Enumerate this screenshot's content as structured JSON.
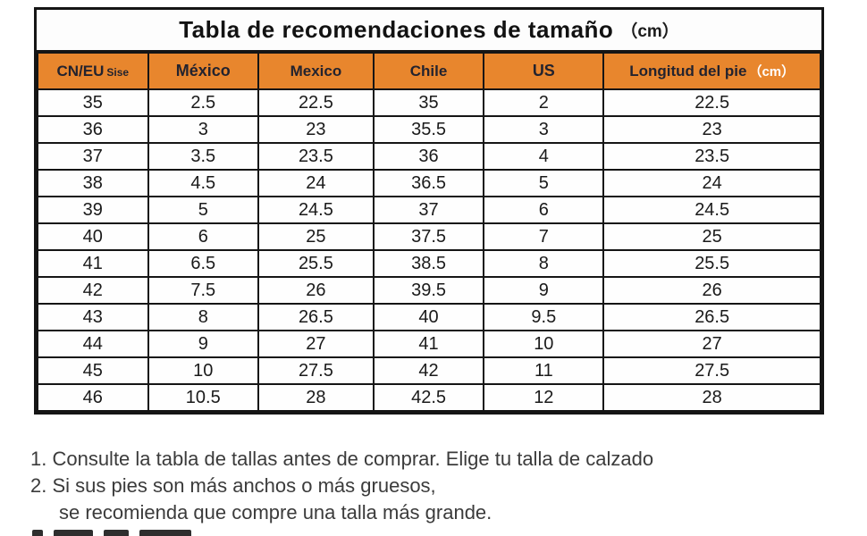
{
  "title": {
    "main": "Tabla de recomendaciones de tamaño",
    "unit": "（cm）"
  },
  "table": {
    "headers": [
      {
        "label": "CN/EU",
        "sub": "Sise"
      },
      {
        "label": "México"
      },
      {
        "label": "Mexico"
      },
      {
        "label": "Chile"
      },
      {
        "label": "US"
      },
      {
        "label": "Longitud del pie",
        "unit": "（cm）"
      }
    ],
    "rows": [
      [
        "35",
        "2.5",
        "22.5",
        "35",
        "2",
        "22.5"
      ],
      [
        "36",
        "3",
        "23",
        "35.5",
        "3",
        "23"
      ],
      [
        "37",
        "3.5",
        "23.5",
        "36",
        "4",
        "23.5"
      ],
      [
        "38",
        "4.5",
        "24",
        "36.5",
        "5",
        "24"
      ],
      [
        "39",
        "5",
        "24.5",
        "37",
        "6",
        "24.5"
      ],
      [
        "40",
        "6",
        "25",
        "37.5",
        "7",
        "25"
      ],
      [
        "41",
        "6.5",
        "25.5",
        "38.5",
        "8",
        "25.5"
      ],
      [
        "42",
        "7.5",
        "26",
        "39.5",
        "9",
        "26"
      ],
      [
        "43",
        "8",
        "26.5",
        "40",
        "9.5",
        "26.5"
      ],
      [
        "44",
        "9",
        "27",
        "41",
        "10",
        "27"
      ],
      [
        "45",
        "10",
        "27.5",
        "42",
        "11",
        "27.5"
      ],
      [
        "46",
        "10.5",
        "28",
        "42.5",
        "12",
        "28"
      ]
    ]
  },
  "notes": [
    "1. Consulte la tabla de tallas antes de comprar. Elige tu talla de calzado",
    "2. Si sus pies son más anchos o más gruesos,",
    "se recomienda que compre una talla más grande."
  ],
  "colors": {
    "header_bg": "#E8862D",
    "header_text": "#23232e",
    "header_unit_text": "#ffffff",
    "border": "#151515",
    "note_text": "#3b3b3b"
  }
}
